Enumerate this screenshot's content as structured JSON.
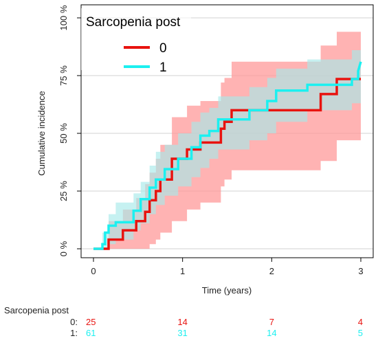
{
  "chart_data": {
    "type": "line",
    "xlabel": "Time (years)",
    "ylabel": "Cumulative incidence",
    "xlim": [
      0,
      3
    ],
    "ylim": [
      0,
      1
    ],
    "x_ticks": [
      {
        "value": 0,
        "label": "0"
      },
      {
        "value": 1,
        "label": "1"
      },
      {
        "value": 2,
        "label": "2"
      },
      {
        "value": 3,
        "label": "3"
      }
    ],
    "y_ticks": [
      {
        "value": 0,
        "label": "0 %"
      },
      {
        "value": 0.25,
        "label": "25 %"
      },
      {
        "value": 0.5,
        "label": "50 %"
      },
      {
        "value": 0.75,
        "label": "75 %"
      },
      {
        "value": 1,
        "label": "100 %"
      }
    ],
    "grid": "horizontal",
    "legend": {
      "title": "Sarcopenia post",
      "placement": "top-left"
    },
    "series": [
      {
        "name": "0",
        "color": "#e8130f",
        "band_color": "#ff9a9a",
        "points": [
          [
            0,
            0
          ],
          [
            0.17,
            0
          ],
          [
            0.17,
            0.04
          ],
          [
            0.33,
            0.04
          ],
          [
            0.33,
            0.08
          ],
          [
            0.48,
            0.08
          ],
          [
            0.48,
            0.12
          ],
          [
            0.58,
            0.12
          ],
          [
            0.58,
            0.16
          ],
          [
            0.63,
            0.16
          ],
          [
            0.63,
            0.21
          ],
          [
            0.7,
            0.21
          ],
          [
            0.7,
            0.25
          ],
          [
            0.75,
            0.25
          ],
          [
            0.75,
            0.3
          ],
          [
            0.88,
            0.3
          ],
          [
            0.88,
            0.39
          ],
          [
            1.05,
            0.39
          ],
          [
            1.05,
            0.43
          ],
          [
            1.2,
            0.43
          ],
          [
            1.2,
            0.46
          ],
          [
            1.43,
            0.46
          ],
          [
            1.43,
            0.52
          ],
          [
            1.47,
            0.52
          ],
          [
            1.47,
            0.55
          ],
          [
            1.55,
            0.55
          ],
          [
            1.55,
            0.6
          ],
          [
            2.55,
            0.6
          ],
          [
            2.55,
            0.67
          ],
          [
            2.73,
            0.67
          ],
          [
            2.73,
            0.735
          ],
          [
            3,
            0.735
          ]
        ],
        "ci_lower": [
          [
            0,
            0
          ],
          [
            0.17,
            0
          ],
          [
            0.33,
            0
          ],
          [
            0.48,
            0
          ],
          [
            0.58,
            0
          ],
          [
            0.63,
            0.02
          ],
          [
            0.7,
            0.04
          ],
          [
            0.75,
            0.07
          ],
          [
            0.88,
            0.12
          ],
          [
            1.05,
            0.17
          ],
          [
            1.2,
            0.2
          ],
          [
            1.43,
            0.27
          ],
          [
            1.47,
            0.3
          ],
          [
            1.55,
            0.34
          ],
          [
            2.55,
            0.38
          ],
          [
            2.73,
            0.47
          ],
          [
            3,
            0.53
          ]
        ],
        "ci_upper": [
          [
            0,
            0
          ],
          [
            0.17,
            0.12
          ],
          [
            0.33,
            0.17
          ],
          [
            0.48,
            0.22
          ],
          [
            0.58,
            0.28
          ],
          [
            0.63,
            0.33
          ],
          [
            0.7,
            0.39
          ],
          [
            0.75,
            0.45
          ],
          [
            0.88,
            0.57
          ],
          [
            1.05,
            0.62
          ],
          [
            1.2,
            0.64
          ],
          [
            1.43,
            0.72
          ],
          [
            1.47,
            0.74
          ],
          [
            1.55,
            0.81
          ],
          [
            2.55,
            0.88
          ],
          [
            2.73,
            0.94
          ],
          [
            3,
            0.94
          ]
        ]
      },
      {
        "name": "1",
        "color": "#1cf0f0",
        "band_color": "#a8eaea",
        "points": [
          [
            0,
            0
          ],
          [
            0.1,
            0
          ],
          [
            0.1,
            0.02
          ],
          [
            0.13,
            0.02
          ],
          [
            0.13,
            0.07
          ],
          [
            0.17,
            0.07
          ],
          [
            0.17,
            0.1
          ],
          [
            0.25,
            0.1
          ],
          [
            0.25,
            0.115
          ],
          [
            0.45,
            0.115
          ],
          [
            0.45,
            0.165
          ],
          [
            0.53,
            0.165
          ],
          [
            0.53,
            0.215
          ],
          [
            0.63,
            0.215
          ],
          [
            0.63,
            0.265
          ],
          [
            0.7,
            0.265
          ],
          [
            0.7,
            0.3
          ],
          [
            0.8,
            0.3
          ],
          [
            0.8,
            0.345
          ],
          [
            0.95,
            0.345
          ],
          [
            0.95,
            0.39
          ],
          [
            1.1,
            0.39
          ],
          [
            1.1,
            0.44
          ],
          [
            1.2,
            0.44
          ],
          [
            1.2,
            0.49
          ],
          [
            1.3,
            0.49
          ],
          [
            1.3,
            0.51
          ],
          [
            1.4,
            0.51
          ],
          [
            1.4,
            0.56
          ],
          [
            1.75,
            0.56
          ],
          [
            1.75,
            0.6
          ],
          [
            1.95,
            0.6
          ],
          [
            1.95,
            0.64
          ],
          [
            2.05,
            0.64
          ],
          [
            2.05,
            0.685
          ],
          [
            2.4,
            0.685
          ],
          [
            2.4,
            0.71
          ],
          [
            2.9,
            0.71
          ],
          [
            2.9,
            0.735
          ],
          [
            2.97,
            0.735
          ],
          [
            2.97,
            0.77
          ],
          [
            3,
            0.81
          ]
        ],
        "ci_lower": [
          [
            0,
            0
          ],
          [
            0.1,
            0
          ],
          [
            0.17,
            0.02
          ],
          [
            0.25,
            0.04
          ],
          [
            0.45,
            0.08
          ],
          [
            0.53,
            0.11
          ],
          [
            0.63,
            0.15
          ],
          [
            0.7,
            0.19
          ],
          [
            0.8,
            0.23
          ],
          [
            0.95,
            0.27
          ],
          [
            1.1,
            0.31
          ],
          [
            1.2,
            0.35
          ],
          [
            1.3,
            0.39
          ],
          [
            1.4,
            0.43
          ],
          [
            1.75,
            0.47
          ],
          [
            1.95,
            0.5
          ],
          [
            2.05,
            0.55
          ],
          [
            2.4,
            0.6
          ],
          [
            2.9,
            0.63
          ],
          [
            3,
            0.66
          ]
        ],
        "ci_upper": [
          [
            0,
            0
          ],
          [
            0.1,
            0.07
          ],
          [
            0.17,
            0.15
          ],
          [
            0.25,
            0.2
          ],
          [
            0.45,
            0.24
          ],
          [
            0.53,
            0.29
          ],
          [
            0.63,
            0.36
          ],
          [
            0.7,
            0.42
          ],
          [
            0.8,
            0.45
          ],
          [
            0.95,
            0.5
          ],
          [
            1.1,
            0.55
          ],
          [
            1.2,
            0.59
          ],
          [
            1.3,
            0.61
          ],
          [
            1.4,
            0.66
          ],
          [
            1.75,
            0.7
          ],
          [
            1.95,
            0.74
          ],
          [
            2.05,
            0.78
          ],
          [
            2.4,
            0.82
          ],
          [
            2.9,
            0.86
          ],
          [
            3,
            0.9
          ]
        ]
      }
    ],
    "risk_table": {
      "title": "Sarcopenia post",
      "rows": [
        {
          "label": "0:",
          "color": "#e8130f",
          "values": [
            "25",
            "14",
            "7",
            "4"
          ]
        },
        {
          "label": "1:",
          "color": "#1cf0f0",
          "values": [
            "61",
            "31",
            "14",
            "5"
          ]
        }
      ]
    }
  }
}
